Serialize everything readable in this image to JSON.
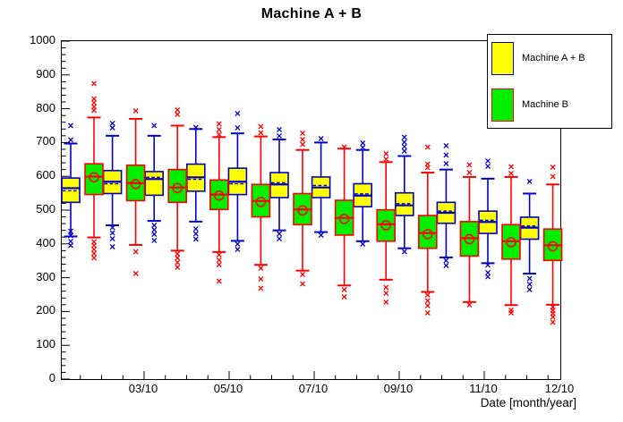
{
  "chart_data": {
    "type": "boxplot",
    "title": "Machine A + B",
    "xlabel": "Date [month/year]",
    "ylim": [
      0,
      1000
    ],
    "y_major_step": 100,
    "y_minor_step": 20,
    "grid": false,
    "x_tick_labels": [
      "03/10",
      "05/10",
      "07/10",
      "09/10",
      "11/10"
    ],
    "x_end_label": "12/10",
    "legend_position": "top-right",
    "legend": [
      {
        "label": "Machine A + B",
        "fill": "#ffff00",
        "border": "#0000cc"
      },
      {
        "label": "Machine B",
        "fill": "#00ee00",
        "border": "#ff0000"
      }
    ],
    "series": [
      {
        "name": "Machine A + B",
        "fill": "#ffff00",
        "color": "#0000cc",
        "mean_style": "dashed",
        "boxes": [
          {
            "q1": 523,
            "q3": 595,
            "med": 565,
            "mean": 557,
            "lo": 422,
            "hi": 697,
            "out_hi": [
              750,
              708
            ],
            "out_lo": [
              438,
              425,
              408,
              395
            ]
          },
          {
            "q1": 549,
            "q3": 617,
            "med": 584,
            "mean": 578,
            "lo": 455,
            "hi": 720,
            "out_hi": [
              757,
              744
            ],
            "out_lo": [
              448,
              432,
              415,
              392
            ]
          },
          {
            "q1": 544,
            "q3": 614,
            "med": 592,
            "mean": 597,
            "lo": 468,
            "hi": 720,
            "out_hi": [
              750
            ],
            "out_lo": [
              455,
              442,
              428,
              410
            ]
          },
          {
            "q1": 556,
            "q3": 636,
            "med": 597,
            "mean": 591,
            "lo": 466,
            "hi": 740,
            "out_hi": [
              745
            ],
            "out_lo": [
              445,
              430,
              414
            ]
          },
          {
            "q1": 546,
            "q3": 624,
            "med": 584,
            "mean": 578,
            "lo": 409,
            "hi": 727,
            "out_hi": [
              786,
              744
            ],
            "out_lo": [
              399,
              384
            ]
          },
          {
            "q1": 537,
            "q3": 611,
            "med": 576,
            "mean": 581,
            "lo": 440,
            "hi": 709,
            "out_hi": [
              738,
              719
            ],
            "out_lo": [
              430,
              415
            ]
          },
          {
            "q1": 537,
            "q3": 598,
            "med": 567,
            "mean": 573,
            "lo": 435,
            "hi": 700,
            "out_hi": [
              712
            ],
            "out_lo": [
              426
            ]
          },
          {
            "q1": 510,
            "q3": 578,
            "med": 543,
            "mean": 548,
            "lo": 408,
            "hi": 678,
            "out_hi": [
              699,
              685
            ],
            "out_lo": [
              399
            ]
          },
          {
            "q1": 484,
            "q3": 551,
            "med": 514,
            "mean": 519,
            "lo": 387,
            "hi": 660,
            "out_hi": [
              716,
              701,
              688,
              674
            ],
            "out_lo": [
              377
            ]
          },
          {
            "q1": 461,
            "q3": 523,
            "med": 492,
            "mean": 497,
            "lo": 360,
            "hi": 620,
            "out_hi": [
              690,
              663,
              638
            ],
            "out_lo": [
              350,
              336
            ]
          },
          {
            "q1": 431,
            "q3": 497,
            "med": 465,
            "mean": 470,
            "lo": 343,
            "hi": 593,
            "out_hi": [
              646,
              629
            ],
            "out_lo": [
              337,
              315,
              303
            ]
          },
          {
            "q1": 414,
            "q3": 479,
            "med": 448,
            "mean": 453,
            "lo": 312,
            "hi": 549,
            "out_hi": [
              585
            ],
            "out_lo": [
              297,
              280,
              264
            ]
          }
        ]
      },
      {
        "name": "Machine B",
        "fill": "#00ee00",
        "color": "#ff0000",
        "mean_style": "circle",
        "boxes": [
          {
            "q1": 546,
            "q3": 637,
            "med": 599,
            "mean": 597,
            "lo": 419,
            "hi": 774,
            "out_hi": [
              875,
              830,
              818,
              806,
              795
            ],
            "out_lo": [
              406,
              395,
              384,
              372,
              358
            ]
          },
          {
            "q1": 528,
            "q3": 633,
            "med": 580,
            "mean": 577,
            "lo": 397,
            "hi": 770,
            "out_hi": [
              793
            ],
            "out_lo": [
              377,
              312
            ]
          },
          {
            "q1": 523,
            "q3": 620,
            "med": 567,
            "mean": 565,
            "lo": 380,
            "hi": 750,
            "out_hi": [
              796,
              783
            ],
            "out_lo": [
              371,
              358,
              345,
              331
            ]
          },
          {
            "q1": 502,
            "q3": 589,
            "med": 546,
            "mean": 543,
            "lo": 376,
            "hi": 716,
            "out_hi": [
              755,
              738,
              724
            ],
            "out_lo": [
              368,
              352,
              338,
              290
            ]
          },
          {
            "q1": 480,
            "q3": 576,
            "med": 527,
            "mean": 524,
            "lo": 338,
            "hi": 718,
            "out_hi": [
              748,
              729
            ],
            "out_lo": [
              328,
              296,
              268
            ]
          },
          {
            "q1": 457,
            "q3": 549,
            "med": 502,
            "mean": 499,
            "lo": 321,
            "hi": 678,
            "out_hi": [
              728,
              709,
              694
            ],
            "out_lo": [
              310,
              282
            ]
          },
          {
            "q1": 426,
            "q3": 529,
            "med": 477,
            "mean": 474,
            "lo": 277,
            "hi": 682,
            "out_hi": [
              687
            ],
            "out_lo": [
              265,
              244
            ]
          },
          {
            "q1": 408,
            "q3": 501,
            "med": 458,
            "mean": 455,
            "lo": 294,
            "hi": 642,
            "out_hi": [
              667,
              651
            ],
            "out_lo": [
              271,
              254,
              227
            ]
          },
          {
            "q1": 387,
            "q3": 484,
            "med": 432,
            "mean": 429,
            "lo": 258,
            "hi": 611,
            "out_hi": [
              686,
              636,
              626
            ],
            "out_lo": [
              249,
              231,
              217,
              196
            ]
          },
          {
            "q1": 364,
            "q3": 466,
            "med": 417,
            "mean": 414,
            "lo": 228,
            "hi": 598,
            "out_hi": [
              633,
              611
            ],
            "out_lo": [
              219
            ]
          },
          {
            "q1": 355,
            "q3": 457,
            "med": 408,
            "mean": 405,
            "lo": 219,
            "hi": 598,
            "out_hi": [
              628,
              608
            ],
            "out_lo": [
              204,
              196
            ]
          },
          {
            "q1": 351,
            "q3": 444,
            "med": 396,
            "mean": 393,
            "lo": 220,
            "hi": 576,
            "out_hi": [
              627,
              599
            ],
            "out_lo": [
              213,
              204,
              195,
              184,
              168
            ]
          }
        ]
      }
    ]
  }
}
